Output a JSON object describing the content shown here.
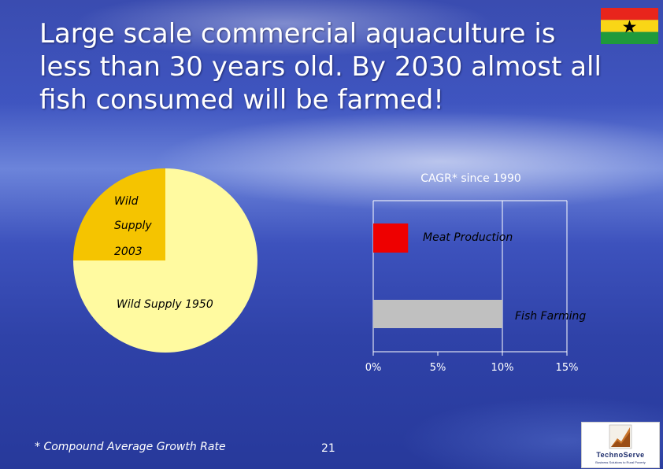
{
  "slide": {
    "title": "Large scale commercial aquaculture is less than 30 years old. By 2030 almost all fish consumed will be farmed!",
    "footnote": "* Compound Average Growth Rate",
    "page_number": "21"
  },
  "flag": {
    "colors": {
      "top": "#e8251c",
      "middle": "#f9d616",
      "bottom": "#1f9a3c",
      "star": "#000000"
    }
  },
  "logo": {
    "name": "TechnoServe",
    "tagline": "Business Solutions to Rural Poverty"
  },
  "chart_data": [
    {
      "type": "pie",
      "categories": [
        "Wild Supply 2003",
        "Wild Supply 1950"
      ],
      "values": [
        25,
        75
      ],
      "labels": {
        "wild_line1": "Wild",
        "wild_line2": "Supply",
        "wild_line3": "2003",
        "wild_1950": "Wild Supply 1950"
      },
      "colors": [
        "#f5c400",
        "#fffaa0"
      ]
    },
    {
      "type": "bar",
      "title": "CAGR* since 1990",
      "categories": [
        "Meat Production",
        "Fish Farming"
      ],
      "values": [
        2.7,
        10.0
      ],
      "colors": [
        "#ee0000",
        "#c0c0c0"
      ],
      "xlim": [
        0,
        15
      ],
      "ticks": [
        "0%",
        "5%",
        "10%",
        "15%"
      ],
      "tick_values": [
        0,
        5,
        10,
        15
      ]
    }
  ]
}
